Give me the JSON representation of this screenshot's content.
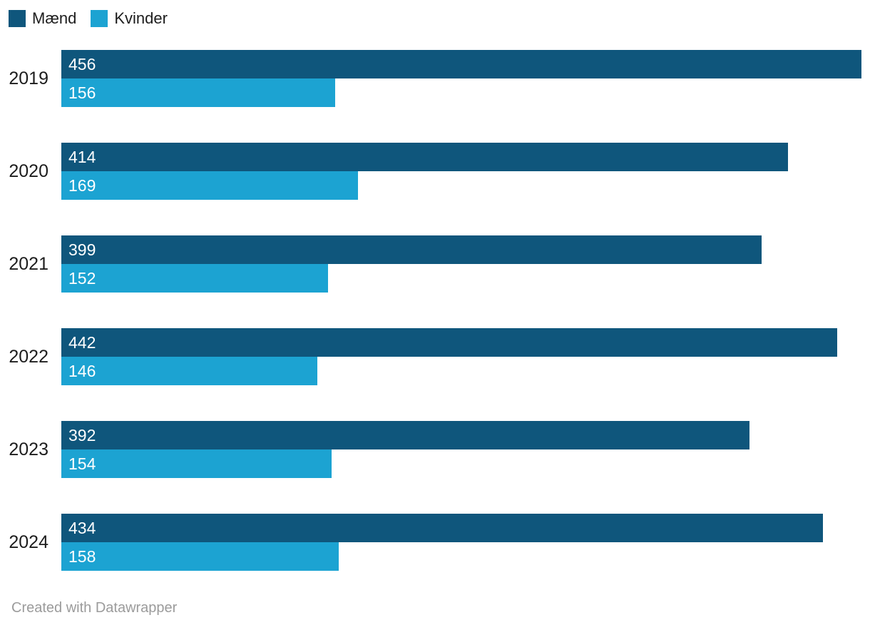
{
  "chart_data": {
    "type": "bar",
    "orientation": "horizontal",
    "categories": [
      "2019",
      "2020",
      "2021",
      "2022",
      "2023",
      "2024"
    ],
    "series": [
      {
        "name": "Mænd",
        "color": "#0f567c",
        "values": [
          456,
          414,
          399,
          442,
          392,
          434
        ]
      },
      {
        "name": "Kvinder",
        "color": "#1ca3d2",
        "values": [
          156,
          169,
          152,
          146,
          154,
          158
        ]
      }
    ],
    "xlim": [
      0,
      456
    ],
    "grid": false,
    "legend_position": "top-left",
    "value_labels": "inside-bar-start"
  },
  "legend": {
    "items": [
      {
        "label": "Mænd",
        "color": "#0f567c"
      },
      {
        "label": "Kvinder",
        "color": "#1ca3d2"
      }
    ]
  },
  "footer": {
    "text": "Created with Datawrapper"
  },
  "colors": {
    "series_maend": "#0f567c",
    "series_kvinder": "#1ca3d2",
    "category_label": "#1d1d1d",
    "value_label": "#ffffff",
    "footer_text": "#9b9b9b",
    "background": "#ffffff"
  }
}
